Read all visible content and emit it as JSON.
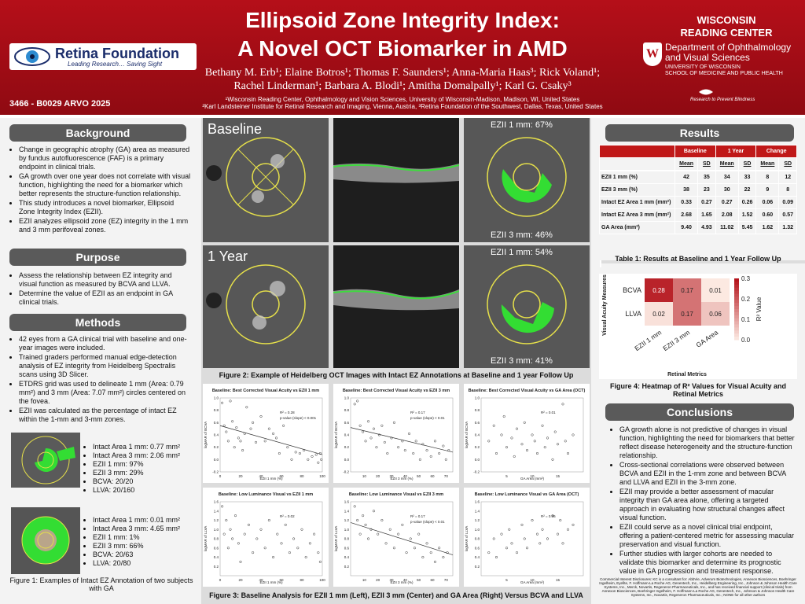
{
  "header": {
    "title_line1": "Ellipsoid Zone Integrity Index:",
    "title_line2": "A Novel OCT Biomarker in AMD",
    "authors_line1": "Bethany M. Erb¹; Elaine Botros¹; Thomas F. Saunders¹; Anna-Maria Haas³; Rick Voland¹;",
    "authors_line2": "Rachel Linderman¹; Barbara A. Blodi¹; Amitha Domalpally¹; Karl G. Csaky³",
    "affiliation1": "¹Wisconsin Reading Center, Ophthalmology and Vision Sciences, University of Wisconsin-Madison, Madison, WI, United States",
    "affiliation2": "²Karl Landsteiner Institute for Retinal Research and Imaging, Vienna, Austria, ³Retina Foundation of the Southwest, Dallas, Texas, United States",
    "poster_code": "3466 - B0029 ARVO 2025",
    "logo_left_name": "Retina Foundation",
    "logo_left_tagline": "Leading Research… Saving Sight",
    "wrc_line1": "WISCONSIN",
    "wrc_line2": "READING CENTER",
    "crest_letter": "W",
    "dept_line1": "Department of Ophthalmology",
    "dept_line2": "and Visual Sciences",
    "dept_line3": "UNIVERSITY OF WISCONSIN",
    "dept_line4": "SCHOOL OF MEDICINE AND PUBLIC HEALTH",
    "rpb": "Research to Prevent Blindness"
  },
  "background": {
    "heading": "Background",
    "bullets": [
      "Change in geographic atrophy (GA) area as measured by fundus autofluorescence (FAF) is a primary endpoint in clinical trials.",
      "GA growth over one year does not correlate with visual function, highlighting the need for a biomarker which better represents the structure-function relationship.",
      "This study introduces a novel biomarker, Ellipsoid Zone Integrity Index (EZII).",
      "EZII analyzes ellipsoid zone (EZ) integrity in the 1 mm and 3 mm perifoveal zones."
    ]
  },
  "purpose": {
    "heading": "Purpose",
    "bullets": [
      "Assess the relationship between EZ integrity and visual function as measured by BCVA and LLVA.",
      "Determine the value of EZII as an endpoint in GA clinical trials."
    ]
  },
  "methods": {
    "heading": "Methods",
    "bullets": [
      "42 eyes from a GA clinical trial with baseline and one-year images were included.",
      "Trained graders performed manual edge-detection analysis of EZ integrity from Heidelberg Spectralis scans using 3D Slicer.",
      "ETDRS grid was used to delineate 1 mm (Area: 0.79 mm²) and 3 mm (Area: 7.07 mm²) circles centered on the fovea.",
      "EZII was calculated as the percentage of intact EZ within the 1-mm and 3-mm zones."
    ]
  },
  "subjects": [
    {
      "items": [
        "Intact Area 1 mm: 0.77 mm²",
        "Intact Area 3 mm: 2.06 mm²",
        "EZII 1 mm: 97%",
        "EZII 3 mm: 29%",
        "BCVA: 20/20",
        "LLVA: 20/160"
      ]
    },
    {
      "items": [
        "Intact Area 1 mm: 0.01 mm²",
        "Intact Area 3 mm: 4.65 mm²",
        "EZII 1 mm: 1%",
        "EZII 3 mm: 66%",
        "BCVA: 20/63",
        "LLVA: 20/80"
      ]
    }
  ],
  "figure1_caption": "Figure 1: Examples of Intact EZ Annotation of two subjects with GA",
  "figure2": {
    "baseline_label": "Baseline",
    "year_label": "1 Year",
    "bl_ezii1": "EZII 1 mm: 67%",
    "bl_ezii3": "EZII 3 mm: 46%",
    "yr_ezii1": "EZII 1 mm: 54%",
    "yr_ezii3": "EZII 3 mm: 41%",
    "caption": "Figure 2: Example of Heidelberg OCT Images with Intact EZ Annotations at Baseline and 1 year Follow Up"
  },
  "figure3_caption": "Figure 3: Baseline Analysis for EZII 1 mm (Left), EZII 3 mm (Center) and GA Area (Right) Versus BCVA and LLVA",
  "results": {
    "heading": "Results",
    "groups": [
      "Baseline",
      "1 Year",
      "Change"
    ],
    "subheads": [
      "Mean",
      "SD",
      "Mean",
      "SD",
      "Mean",
      "SD"
    ],
    "rows": [
      {
        "label": "EZII 1 mm (%)",
        "values": [
          "42",
          "35",
          "34",
          "33",
          "8",
          "12"
        ]
      },
      {
        "label": "EZII 3 mm (%)",
        "values": [
          "38",
          "23",
          "30",
          "22",
          "9",
          "8"
        ]
      },
      {
        "label": "Intact EZ Area 1 mm (mm²)",
        "values": [
          "0.33",
          "0.27",
          "0.27",
          "0.26",
          "0.06",
          "0.09"
        ]
      },
      {
        "label": "Intact EZ Area 3 mm (mm²)",
        "values": [
          "2.68",
          "1.65",
          "2.08",
          "1.52",
          "0.60",
          "0.57"
        ]
      },
      {
        "label": "GA Area (mm²)",
        "values": [
          "9.40",
          "4.93",
          "11.02",
          "5.45",
          "1.62",
          "1.32"
        ]
      }
    ],
    "caption": "Table 1: Results at Baseline and 1 Year Follow Up"
  },
  "figure4_caption": "Figure 4: Heatmap of R² Values for Visual Acuity and Retinal Metrics",
  "conclusions": {
    "heading": "Conclusions",
    "bullets": [
      "GA growth alone is not predictive of changes in visual function, highlighting the need for biomarkers that better reflect disease heterogeneity and the structure-function relationship.",
      "Cross-sectional correlations were observed between BCVA and EZII in the 1-mm zone and between BCVA and LLVA and EZII in the 3-mm zone.",
      "EZII may provide a better assessment of macular integrity than GA area alone, offering a targeted approach in evaluating how structural changes affect visual function.",
      "EZII could serve as a novel clinical trial endpoint, offering a patient-centered metric for assessing macular preservation and visual function.",
      "Further studies with larger cohorts are needed to validate this biomarker and determine its prognostic value in GA progression and treatment response."
    ]
  },
  "disclosure": "Commercial Interest Disclosures: KC is a consultant for: AbbVie, Adverum Biotechnologies, Annexon Biosciences, Boehringer Ingelheim, Eyefite, F. Hoffmann-La Roche AG, Genentech, Inc., Heidelberg Engineering, Inc., Johnson & Johnson Health Care Systems, Inc., Merck, Novartis, Regeneron Pharmaceuticals, Inc., and has received financial support (clinical trials) from Annexon Biosciences, Boehringer Ingelheim, F. Hoffmann-La Roche AG, Genentech, Inc., Johnson & Johnson Health Care Systems, Inc., Novartis, Regeneron Pharmaceuticals, Inc.; NONE for all other authors",
  "chart_data": [
    {
      "type": "heatmap",
      "title": "",
      "xlabel": "Retinal Metrics",
      "ylabel": "Visual Acuity Measures",
      "x": [
        "EZII 1 mm",
        "EZII 3 mm",
        "GA Area"
      ],
      "y": [
        "BCVA",
        "LLVA"
      ],
      "values": [
        [
          0.28,
          0.17,
          0.01
        ],
        [
          0.02,
          0.17,
          0.06
        ]
      ],
      "labels": [
        [
          "0.28",
          "0.17",
          "0.01"
        ],
        [
          "0.02",
          "0.17",
          "0.06"
        ]
      ],
      "colorbar_label": "R² Value",
      "colorbar_ticks": [
        "0.0",
        "0.1",
        "0.2",
        "0.3"
      ],
      "vmin": 0,
      "vmax": 0.3
    },
    {
      "type": "scatter",
      "title": "Baseline: Best Corrected Visual Acuity vs EZII 1 mm",
      "xlabel": "EZII 1 mm (%)",
      "ylabel": "logMAR of BCVA",
      "xlim": [
        0,
        100
      ],
      "ylim": [
        -0.2,
        1.0
      ],
      "xticks": [
        "0",
        "20",
        "40",
        "60",
        "80",
        "100"
      ],
      "yticks": [
        "-0.2",
        "0.0",
        "0.2",
        "0.4",
        "0.6",
        "0.8",
        "1.0"
      ],
      "annotation": [
        "R² = 0.28",
        "p-value (slope) < 0.001"
      ],
      "trend": [
        [
          0,
          0.55
        ],
        [
          100,
          0.08
        ]
      ],
      "points": [
        [
          2,
          0.92
        ],
        [
          4,
          0.55
        ],
        [
          6,
          0.45
        ],
        [
          8,
          0.3
        ],
        [
          10,
          0.95
        ],
        [
          12,
          0.62
        ],
        [
          14,
          0.2
        ],
        [
          16,
          0.52
        ],
        [
          18,
          0.35
        ],
        [
          20,
          0.3
        ],
        [
          22,
          0.15
        ],
        [
          24,
          0.42
        ],
        [
          26,
          0.85
        ],
        [
          30,
          0.5
        ],
        [
          32,
          0.6
        ],
        [
          35,
          0.28
        ],
        [
          40,
          0.7
        ],
        [
          44,
          0.3
        ],
        [
          48,
          0.5
        ],
        [
          52,
          0.42
        ],
        [
          55,
          0.35
        ],
        [
          58,
          0.1
        ],
        [
          62,
          0.55
        ],
        [
          66,
          0.2
        ],
        [
          70,
          0.0
        ],
        [
          74,
          0.12
        ],
        [
          78,
          0.1
        ],
        [
          82,
          0.15
        ],
        [
          86,
          0.0
        ],
        [
          90,
          0.05
        ],
        [
          94,
          0.08
        ],
        [
          96,
          -0.05
        ],
        [
          98,
          0.1
        ],
        [
          99,
          0.0
        ]
      ]
    },
    {
      "type": "scatter",
      "title": "Baseline: Best Corrected Visual Acuity vs EZII 3 mm",
      "xlabel": "EZII 3 mm (%)",
      "ylabel": "logMAR of BCVA",
      "xlim": [
        0,
        75
      ],
      "ylim": [
        -0.2,
        1.0
      ],
      "xticks": [
        "10",
        "20",
        "30",
        "40",
        "50",
        "60",
        "70"
      ],
      "yticks": [
        "-0.2",
        "0.0",
        "0.2",
        "0.4",
        "0.6",
        "0.8",
        "1.0"
      ],
      "annotation": [
        "R² = 0.17",
        "p-value (slope) < 0.01"
      ],
      "trend": [
        [
          0,
          0.52
        ],
        [
          75,
          0.12
        ]
      ],
      "points": [
        [
          3,
          0.9
        ],
        [
          5,
          0.95
        ],
        [
          7,
          0.55
        ],
        [
          9,
          0.45
        ],
        [
          11,
          0.3
        ],
        [
          13,
          0.62
        ],
        [
          15,
          0.35
        ],
        [
          17,
          0.5
        ],
        [
          19,
          0.2
        ],
        [
          21,
          0.4
        ],
        [
          23,
          0.55
        ],
        [
          25,
          0.28
        ],
        [
          27,
          0.1
        ],
        [
          30,
          0.35
        ],
        [
          32,
          0.6
        ],
        [
          35,
          0.2
        ],
        [
          38,
          0.3
        ],
        [
          40,
          0.15
        ],
        [
          43,
          0.42
        ],
        [
          46,
          0.1
        ],
        [
          48,
          0.3
        ],
        [
          51,
          0.0
        ],
        [
          53,
          0.25
        ],
        [
          56,
          0.15
        ],
        [
          59,
          0.05
        ],
        [
          62,
          0.3
        ],
        [
          65,
          0.1
        ],
        [
          68,
          0.22
        ],
        [
          70,
          0.0
        ],
        [
          72,
          0.15
        ]
      ]
    },
    {
      "type": "scatter",
      "title": "Baseline: Best Corrected Visual Acuity vs GA Area (OCT)",
      "xlabel": "GA Area (mm²)",
      "ylabel": "logMAR of BCVA",
      "xlim": [
        0,
        20
      ],
      "ylim": [
        -0.2,
        1.0
      ],
      "xticks": [
        "5",
        "10",
        "15"
      ],
      "yticks": [
        "-0.2",
        "0.0",
        "0.2",
        "0.4",
        "0.6",
        "0.8",
        "1.0"
      ],
      "annotation": [
        "R² = 0.01"
      ],
      "points": [
        [
          1.5,
          0.3
        ],
        [
          2.5,
          0.55
        ],
        [
          3,
          0.1
        ],
        [
          4,
          0.4
        ],
        [
          4.5,
          0.7
        ],
        [
          5,
          0.2
        ],
        [
          6,
          0.35
        ],
        [
          6.5,
          0.05
        ],
        [
          7,
          0.5
        ],
        [
          8,
          0.25
        ],
        [
          8.5,
          0.6
        ],
        [
          9,
          0.15
        ],
        [
          10,
          0.4
        ],
        [
          10.5,
          0.3
        ],
        [
          11,
          0.1
        ],
        [
          12,
          0.55
        ],
        [
          12.5,
          0.2
        ],
        [
          13,
          0.35
        ],
        [
          14,
          0.0
        ],
        [
          14.5,
          0.45
        ],
        [
          15,
          0.25
        ],
        [
          16,
          0.9
        ],
        [
          16.5,
          0.3
        ],
        [
          17,
          0.1
        ],
        [
          18,
          0.4
        ]
      ]
    },
    {
      "type": "scatter",
      "title": "Baseline: Low Luminance Visual vs EZII 1 mm",
      "xlabel": "EZII 1 mm (%)",
      "ylabel": "logMAR of LLVA",
      "xlim": [
        0,
        100
      ],
      "ylim": [
        0.0,
        1.6
      ],
      "xticks": [
        "0",
        "20",
        "40",
        "60",
        "80",
        "100"
      ],
      "yticks": [
        "0.2",
        "0.4",
        "0.6",
        "0.8",
        "1.0",
        "1.2",
        "1.4",
        "1.6"
      ],
      "annotation": [
        "R² = 0.02"
      ],
      "points": [
        [
          2,
          1.5
        ],
        [
          4,
          0.9
        ],
        [
          6,
          1.2
        ],
        [
          8,
          0.6
        ],
        [
          10,
          1.0
        ],
        [
          12,
          0.8
        ],
        [
          15,
          1.3
        ],
        [
          18,
          0.7
        ],
        [
          20,
          0.3
        ],
        [
          24,
          0.9
        ],
        [
          28,
          1.1
        ],
        [
          32,
          0.5
        ],
        [
          36,
          0.8
        ],
        [
          40,
          1.0
        ],
        [
          44,
          0.6
        ],
        [
          48,
          1.2
        ],
        [
          52,
          0.4
        ],
        [
          56,
          0.9
        ],
        [
          60,
          0.7
        ],
        [
          64,
          1.1
        ],
        [
          68,
          0.5
        ],
        [
          72,
          0.8
        ],
        [
          76,
          0.6
        ],
        [
          80,
          1.0
        ],
        [
          84,
          0.4
        ],
        [
          88,
          0.7
        ],
        [
          92,
          0.9
        ],
        [
          96,
          0.5
        ],
        [
          98,
          0.3
        ]
      ]
    },
    {
      "type": "scatter",
      "title": "Baseline: Low Luminance Visual vs EZII 3 mm",
      "xlabel": "EZII 3 mm (%)",
      "ylabel": "logMAR of LLVA",
      "xlim": [
        0,
        75
      ],
      "ylim": [
        0.0,
        1.6
      ],
      "xticks": [
        "10",
        "20",
        "30",
        "40",
        "50",
        "60",
        "70"
      ],
      "yticks": [
        "0.2",
        "0.4",
        "0.6",
        "0.8",
        "1.0",
        "1.2",
        "1.4",
        "1.6"
      ],
      "annotation": [
        "R² = 0.17",
        "p-value (slope) < 0.01"
      ],
      "trend": [
        [
          0,
          1.15
        ],
        [
          75,
          0.45
        ]
      ],
      "points": [
        [
          3,
          1.5
        ],
        [
          5,
          1.2
        ],
        [
          7,
          0.9
        ],
        [
          9,
          1.3
        ],
        [
          11,
          1.1
        ],
        [
          13,
          0.8
        ],
        [
          15,
          1.0
        ],
        [
          17,
          1.4
        ],
        [
          20,
          0.9
        ],
        [
          23,
          1.2
        ],
        [
          26,
          0.7
        ],
        [
          29,
          1.0
        ],
        [
          32,
          0.6
        ],
        [
          35,
          0.9
        ],
        [
          38,
          1.1
        ],
        [
          41,
          0.5
        ],
        [
          44,
          0.8
        ],
        [
          47,
          0.6
        ],
        [
          50,
          0.9
        ],
        [
          53,
          0.4
        ],
        [
          56,
          0.7
        ],
        [
          59,
          0.5
        ],
        [
          62,
          0.3
        ],
        [
          65,
          0.6
        ],
        [
          68,
          0.4
        ],
        [
          71,
          0.5
        ]
      ]
    },
    {
      "type": "scatter",
      "title": "Baseline: Low Luminance Visual vs GA Area (OCT)",
      "xlabel": "GA Area (mm²)",
      "ylabel": "logMAR of LLVA",
      "xlim": [
        0,
        20
      ],
      "ylim": [
        0.0,
        1.6
      ],
      "xticks": [
        "5",
        "10",
        "15"
      ],
      "yticks": [
        "0.2",
        "0.4",
        "0.6",
        "0.8",
        "1.0",
        "1.2",
        "1.4",
        "1.6"
      ],
      "annotation": [
        "R² = 0.06"
      ],
      "points": [
        [
          1.5,
          0.5
        ],
        [
          2.5,
          0.8
        ],
        [
          3,
          0.4
        ],
        [
          4,
          0.9
        ],
        [
          5,
          0.6
        ],
        [
          5.5,
          1.0
        ],
        [
          6,
          0.7
        ],
        [
          7,
          0.5
        ],
        [
          8,
          1.1
        ],
        [
          8.5,
          0.8
        ],
        [
          9,
          0.6
        ],
        [
          10,
          1.2
        ],
        [
          11,
          0.9
        ],
        [
          11.5,
          0.7
        ],
        [
          12,
          1.0
        ],
        [
          13,
          0.8
        ],
        [
          14,
          1.3
        ],
        [
          15,
          0.9
        ],
        [
          15.5,
          1.2
        ],
        [
          16,
          0.7
        ],
        [
          17,
          1.0
        ],
        [
          18,
          1.1
        ]
      ]
    }
  ]
}
